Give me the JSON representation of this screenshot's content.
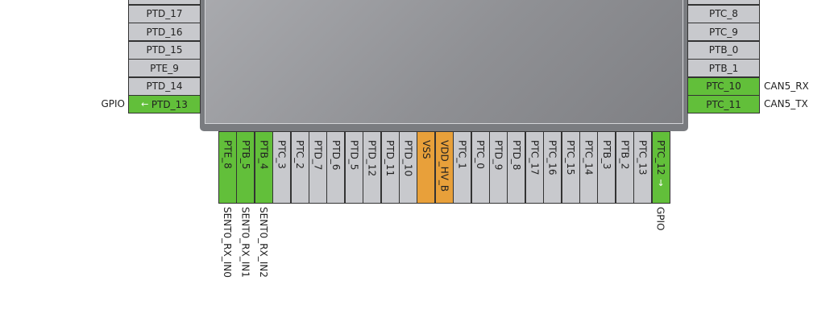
{
  "colors": {
    "gpio": "#62bf3a",
    "power": "#e8a03a",
    "default": "#c8c9cd",
    "chip": "#7a7c80"
  },
  "left_pins": [
    {
      "label": "",
      "state": "default"
    },
    {
      "label": "PTD_17",
      "state": "default"
    },
    {
      "label": "PTD_16",
      "state": "default"
    },
    {
      "label": "PTD_15",
      "state": "default"
    },
    {
      "label": "PTE_9",
      "state": "default"
    },
    {
      "label": "PTD_14",
      "state": "default"
    },
    {
      "label": "PTD_13",
      "state": "gpio",
      "signal": "GPIO",
      "arrow": "arrow-left-icon"
    }
  ],
  "right_pins": [
    {
      "label": "",
      "state": "default"
    },
    {
      "label": "PTC_8",
      "state": "default"
    },
    {
      "label": "PTC_9",
      "state": "default"
    },
    {
      "label": "PTB_0",
      "state": "default"
    },
    {
      "label": "PTB_1",
      "state": "default"
    },
    {
      "label": "PTC_10",
      "state": "gpio",
      "signal": "CAN5_RX"
    },
    {
      "label": "PTC_11",
      "state": "gpio",
      "signal": "CAN5_TX"
    }
  ],
  "bottom_pins": [
    {
      "label": "PTE_8",
      "state": "gpio",
      "signal": "SENT0_RX_IN0"
    },
    {
      "label": "PTB_5",
      "state": "gpio",
      "signal": "SENT0_RX_IN1"
    },
    {
      "label": "PTB_4",
      "state": "gpio",
      "signal": "SENT0_RX_IN2"
    },
    {
      "label": "PTC_3",
      "state": "default"
    },
    {
      "label": "PTC_2",
      "state": "default"
    },
    {
      "label": "PTD_7",
      "state": "default"
    },
    {
      "label": "PTD_6",
      "state": "default"
    },
    {
      "label": "PTD_5",
      "state": "default"
    },
    {
      "label": "PTD_12",
      "state": "default"
    },
    {
      "label": "PTD_11",
      "state": "default"
    },
    {
      "label": "PTD_10",
      "state": "default"
    },
    {
      "label": "VSS",
      "state": "power"
    },
    {
      "label": "VDD_HV_B",
      "state": "power"
    },
    {
      "label": "PTC_1",
      "state": "default"
    },
    {
      "label": "PTC_0",
      "state": "default"
    },
    {
      "label": "PTD_9",
      "state": "default"
    },
    {
      "label": "PTD_8",
      "state": "default"
    },
    {
      "label": "PTC_17",
      "state": "default"
    },
    {
      "label": "PTC_16",
      "state": "default"
    },
    {
      "label": "PTC_15",
      "state": "default"
    },
    {
      "label": "PTC_14",
      "state": "default"
    },
    {
      "label": "PTB_3",
      "state": "default"
    },
    {
      "label": "PTB_2",
      "state": "default"
    },
    {
      "label": "PTC_13",
      "state": "default"
    },
    {
      "label": "PTC_12",
      "state": "gpio",
      "signal": "GPIO",
      "arrow": "arrow-down-icon"
    }
  ]
}
